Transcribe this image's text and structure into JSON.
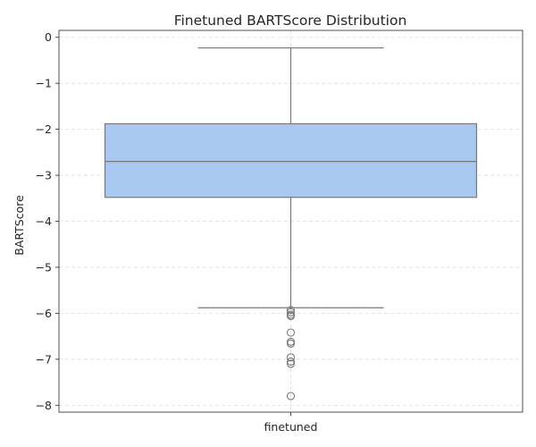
{
  "chart_data": {
    "type": "box",
    "title": "Finetuned BARTScore Distribution",
    "xlabel": "",
    "ylabel": "BARTScore",
    "categories": [
      "finetuned"
    ],
    "yticks": [
      0,
      -1,
      -2,
      -3,
      -4,
      -5,
      -6,
      -7,
      -8
    ],
    "ytick_labels": [
      "0",
      "−1",
      "−2",
      "−3",
      "−4",
      "−5",
      "−6",
      "−7",
      "−8"
    ],
    "ylim": [
      -8.15,
      0.15
    ],
    "grid": true,
    "boxes": [
      {
        "category": "finetuned",
        "whisker_high": -0.23,
        "q3": -1.88,
        "median": -2.7,
        "q1": -3.48,
        "whisker_low": -5.88,
        "outliers": [
          -5.93,
          -5.98,
          -6.03,
          -6.06,
          -6.42,
          -6.62,
          -6.66,
          -6.96,
          -7.05,
          -7.1,
          -7.8
        ]
      }
    ],
    "colors": {
      "box_fill": "#a8c8ef",
      "line": "#787878",
      "grid": "#dddddd",
      "axis": "#262626"
    }
  }
}
